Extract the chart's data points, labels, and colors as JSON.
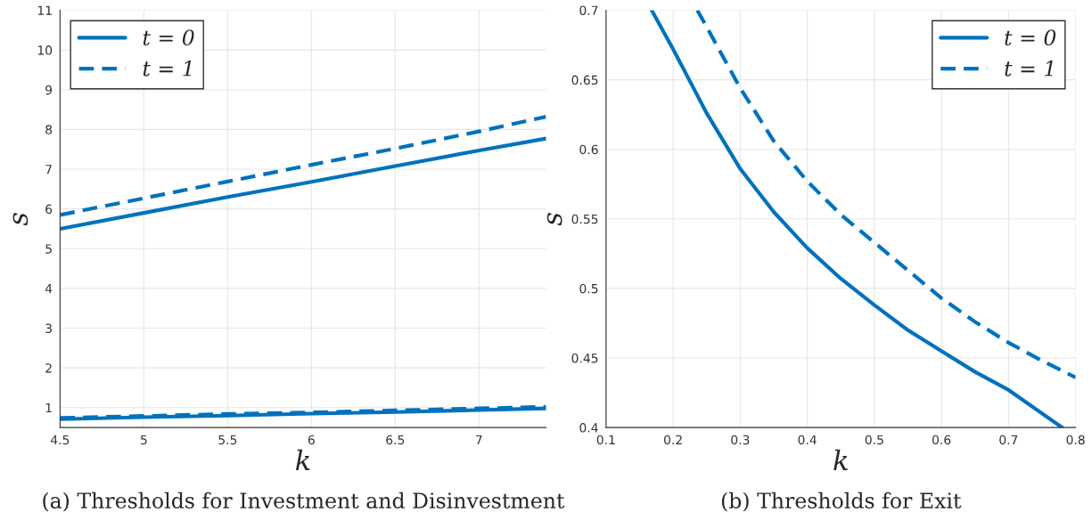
{
  "chart_data": [
    {
      "type": "line",
      "title": "(a) Thresholds for Investment and Disinvestment",
      "xlabel": "k",
      "ylabel": "s",
      "xlim": [
        4.5,
        7.4
      ],
      "xticks": [
        4.5,
        5,
        5.5,
        6,
        6.5,
        7
      ],
      "ylim": [
        0.5,
        11
      ],
      "yticks": [
        1,
        2,
        3,
        4,
        5,
        6,
        7,
        8,
        9,
        10,
        11
      ],
      "grid": true,
      "legend": "top left",
      "series": [
        {
          "name": "t = 0",
          "color": "#0072bd",
          "line_style": "solid",
          "x": [
            4.5,
            5,
            5.5,
            6,
            6.5,
            7,
            7.4
          ],
          "values": [
            5.5,
            5.9,
            6.3,
            6.68,
            7.08,
            7.47,
            7.77
          ]
        },
        {
          "name": "t = 1",
          "color": "#0072bd",
          "line_style": "dashed",
          "x": [
            4.5,
            5,
            5.5,
            6,
            6.5,
            7,
            7.4
          ],
          "values": [
            5.85,
            6.27,
            6.69,
            7.11,
            7.52,
            7.95,
            8.32
          ]
        },
        {
          "color": "#0072bd",
          "line_style": "solid",
          "x": [
            4.5,
            5,
            5.5,
            6,
            6.5,
            7,
            7.4
          ],
          "values": [
            0.71,
            0.76,
            0.8,
            0.85,
            0.89,
            0.94,
            0.98
          ]
        },
        {
          "color": "#0072bd",
          "line_style": "dashed",
          "x": [
            4.5,
            5,
            5.5,
            6,
            6.5,
            7,
            7.4
          ],
          "values": [
            0.74,
            0.79,
            0.84,
            0.88,
            0.93,
            0.98,
            1.02
          ]
        }
      ]
    },
    {
      "type": "line",
      "title": "(b) Thresholds for Exit",
      "xlabel": "k",
      "ylabel": "s",
      "xlim": [
        0.1,
        0.8
      ],
      "xticks": [
        0.1,
        0.2,
        0.3,
        0.4,
        0.5,
        0.6,
        0.7,
        0.8
      ],
      "ylim": [
        0.4,
        0.7
      ],
      "yticks": [
        0.4,
        0.45,
        0.5,
        0.55,
        0.6,
        0.65,
        0.7
      ],
      "grid": true,
      "legend": "top right",
      "series": [
        {
          "name": "t = 0",
          "color": "#0072bd",
          "line_style": "solid",
          "x": [
            0.168,
            0.2,
            0.25,
            0.3,
            0.35,
            0.4,
            0.45,
            0.5,
            0.55,
            0.6,
            0.65,
            0.7,
            0.78
          ],
          "values": [
            0.7,
            0.672,
            0.626,
            0.586,
            0.555,
            0.529,
            0.507,
            0.488,
            0.47,
            0.455,
            0.44,
            0.427,
            0.4
          ]
        },
        {
          "name": "t = 1",
          "color": "#0072bd",
          "line_style": "dashed",
          "x": [
            0.236,
            0.25,
            0.3,
            0.35,
            0.4,
            0.45,
            0.5,
            0.55,
            0.6,
            0.65,
            0.7,
            0.75,
            0.8
          ],
          "values": [
            0.7,
            0.688,
            0.644,
            0.606,
            0.577,
            0.553,
            0.533,
            0.513,
            0.493,
            0.476,
            0.461,
            0.448,
            0.436
          ]
        }
      ]
    }
  ]
}
